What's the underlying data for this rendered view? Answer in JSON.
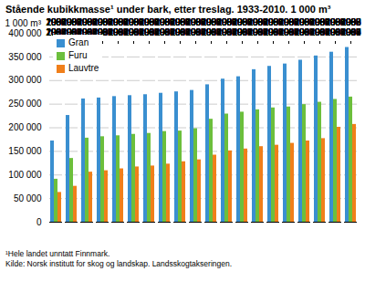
{
  "chart_data": {
    "type": "bar",
    "title": "Stående kubikkmasse¹ under bark, etter treslag. 1933-2010. 1 000 m³",
    "y_label": "1 000 m³",
    "footnote": "¹Hele landet unntatt Finnmark.",
    "source": "Kilde: Norsk institutt for skog og landskap. Landsskogtakseringen.",
    "categories": [
      "1933",
      "1967",
      "1986",
      "1987",
      "1988",
      "1989",
      "1990",
      "1991",
      "1992",
      "1993",
      "1998",
      "1999",
      "2000",
      "2004",
      "2005",
      "2006",
      "2007",
      "2008",
      "2009",
      "2010"
    ],
    "series": [
      {
        "name": "Gran",
        "color": "#3a8fd0",
        "values": [
          172000,
          226000,
          261000,
          263000,
          266000,
          268000,
          270000,
          273000,
          276000,
          279000,
          291000,
          303000,
          308000,
          323000,
          330000,
          335000,
          343000,
          352000,
          360000,
          370000
        ]
      },
      {
        "name": "Furu",
        "color": "#6cbf3c",
        "values": [
          91000,
          135000,
          178000,
          181000,
          183000,
          186000,
          188000,
          192000,
          193000,
          198000,
          218000,
          229000,
          233000,
          238000,
          242000,
          244000,
          249000,
          254000,
          260000,
          265000
        ]
      },
      {
        "name": "Lauvtre",
        "color": "#f07f1a",
        "values": [
          63000,
          76000,
          106000,
          109000,
          113000,
          117000,
          119000,
          123000,
          128000,
          132000,
          142000,
          151000,
          155000,
          160000,
          163000,
          167000,
          172000,
          177000,
          201000,
          207000
        ]
      }
    ],
    "ylim": [
      0,
      400000
    ],
    "yticks": [
      0,
      {
        "value": 50000,
        "label": "50 000"
      },
      {
        "value": 100000,
        "label": "100 000"
      },
      {
        "value": 150000,
        "label": "150 000"
      },
      {
        "value": 200000,
        "label": "200 000"
      },
      {
        "value": 250000,
        "label": "250 000"
      },
      {
        "value": 300000,
        "label": "300 000"
      },
      {
        "value": 350000,
        "label": "350 000"
      },
      {
        "value": 400000,
        "label": "400 000"
      }
    ],
    "grid": true,
    "legend": "upper left"
  }
}
